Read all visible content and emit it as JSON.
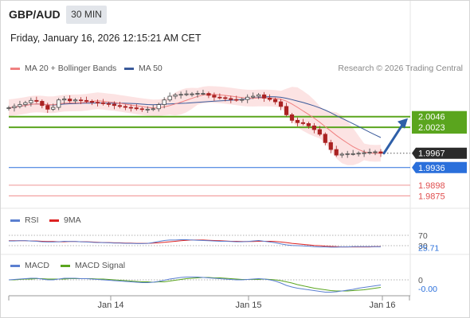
{
  "header": {
    "symbol": "GBP/AUD",
    "timeframe": "30 MIN",
    "datetime": "Friday, January 16, 2026 12:15:21 AM CET",
    "copyright": "Research © 2026 Trading Central"
  },
  "legend": {
    "ma20": "MA 20 + Bollinger Bands",
    "ma50": "MA 50",
    "rsi": "RSI",
    "rsi_ma": "9MA",
    "macd": "MACD",
    "macd_signal": "MACD Signal"
  },
  "colors": {
    "ma20": "#f08080",
    "ma50": "#3a5a9a",
    "band_fill": "#fbd9d9",
    "resistance": "#5aa51e",
    "support_pivot": "#2a6fdb",
    "support_red": "#e05050",
    "candle_up": "#444444",
    "candle_down": "#aa2222",
    "arrow": "#2e5fa8"
  },
  "chart_data": [
    {
      "type": "candlestick",
      "x_ticks": [
        "Jan 14",
        "Jan 15",
        "Jan 16"
      ],
      "ylim": [
        1.9855,
        2.0133
      ],
      "close_series": [
        2.0065,
        2.0068,
        2.0072,
        2.0076,
        2.0081,
        2.0079,
        2.007,
        2.0062,
        2.0066,
        2.0082,
        2.0084,
        2.008,
        2.0082,
        2.0081,
        2.0079,
        2.0077,
        2.0076,
        2.0074,
        2.0073,
        2.007,
        2.0068,
        2.0066,
        2.0065,
        2.0063,
        2.0062,
        2.0062,
        2.0063,
        2.0072,
        2.0082,
        2.009,
        2.0093,
        2.0094,
        2.0095,
        2.0095,
        2.0096,
        2.0096,
        2.0092,
        2.0088,
        2.0087,
        2.0085,
        2.0083,
        2.0082,
        2.0083,
        2.0088,
        2.009,
        2.0093,
        2.0086,
        2.0083,
        2.0078,
        2.0068,
        2.005,
        2.0038,
        2.0033,
        2.0031,
        2.0026,
        2.0018,
        2.0008,
        1.999,
        1.9975,
        1.9963,
        1.9965,
        1.9966,
        1.9966,
        1.9967,
        1.9968,
        1.9969,
        1.997,
        1.9967
      ],
      "price_labels": [
        {
          "value": "2.0046",
          "role": "resistance"
        },
        {
          "value": "2.0023",
          "role": "resistance"
        },
        {
          "value": "1.9967",
          "role": "last"
        },
        {
          "value": "1.9936",
          "role": "pivot"
        },
        {
          "value": "1.9898",
          "role": "support"
        },
        {
          "value": "1.9875",
          "role": "support"
        }
      ],
      "levels": [
        2.0046,
        2.0023,
        1.9967,
        1.9936,
        1.9898,
        1.9875
      ],
      "projection": {
        "from": 1.9967,
        "to": 2.0046
      }
    },
    {
      "type": "line",
      "name": "RSI",
      "ylim": [
        0,
        100
      ],
      "levels": [
        70,
        30
      ],
      "level_labels": [
        "70",
        "30"
      ],
      "last_value": "25.71",
      "values": [
        48,
        48,
        49,
        49,
        48,
        47,
        45,
        44,
        44,
        45,
        47,
        46,
        46,
        45,
        44,
        43,
        42,
        42,
        41,
        40,
        40,
        39,
        39,
        38,
        38,
        39,
        42,
        46,
        50,
        52,
        52,
        53,
        53,
        52,
        51,
        50,
        49,
        48,
        47,
        47,
        46,
        45,
        45,
        46,
        48,
        50,
        47,
        44,
        41,
        37,
        33,
        31,
        30,
        29,
        28,
        26,
        25,
        25,
        24,
        24,
        25,
        25,
        26,
        26,
        26,
        26,
        26,
        25.71
      ],
      "ma_values": [
        49,
        49,
        49,
        49,
        48,
        48,
        47,
        46,
        46,
        45,
        45,
        46,
        46,
        45,
        45,
        44,
        43,
        42,
        42,
        41,
        41,
        40,
        40,
        39,
        39,
        39,
        40,
        41,
        43,
        45,
        47,
        49,
        51,
        52,
        52,
        52,
        51,
        50,
        49,
        48,
        47,
        47,
        46,
        46,
        46,
        47,
        47,
        47,
        46,
        44,
        42,
        39,
        37,
        35,
        33,
        31,
        30,
        28,
        27,
        26,
        25,
        25,
        25,
        25,
        25,
        25,
        26,
        26
      ]
    },
    {
      "type": "line",
      "name": "MACD",
      "zero_label": "0",
      "last_value": "-0.00",
      "ylim": [
        -0.0035,
        0.0015
      ],
      "values": [
        0.0,
        0.0001,
        0.0002,
        0.0003,
        0.0004,
        0.0004,
        0.0002,
        0.0,
        0.0,
        0.0002,
        0.0004,
        0.0004,
        0.0004,
        0.0003,
        0.0003,
        0.0002,
        0.0001,
        0.0,
        -0.0001,
        -0.0002,
        -0.0003,
        -0.0004,
        -0.0005,
        -0.0006,
        -0.0007,
        -0.0007,
        -0.0006,
        -0.0004,
        -0.0001,
        0.0002,
        0.0004,
        0.0006,
        0.0007,
        0.0007,
        0.0007,
        0.0006,
        0.0005,
        0.0004,
        0.0003,
        0.0002,
        0.0001,
        0.0,
        0.0,
        0.0001,
        0.0002,
        0.0003,
        0.0002,
        0.0,
        -0.0003,
        -0.0008,
        -0.0014,
        -0.0018,
        -0.0021,
        -0.0023,
        -0.0025,
        -0.0027,
        -0.0029,
        -0.0031,
        -0.0031,
        -0.003,
        -0.0028,
        -0.0026,
        -0.0024,
        -0.0021,
        -0.0019,
        -0.0017,
        -0.0015,
        -0.0013
      ],
      "signal_values": [
        0.0,
        0.0,
        0.0001,
        0.0002,
        0.0002,
        0.0003,
        0.0003,
        0.0002,
        0.0002,
        0.0002,
        0.0002,
        0.0003,
        0.0003,
        0.0003,
        0.0003,
        0.0003,
        0.0002,
        0.0002,
        0.0001,
        0.0,
        -0.0001,
        -0.0002,
        -0.0003,
        -0.0004,
        -0.0005,
        -0.0005,
        -0.0006,
        -0.0005,
        -0.0005,
        -0.0003,
        -0.0001,
        0.0001,
        0.0003,
        0.0004,
        0.0005,
        0.0006,
        0.0006,
        0.0005,
        0.0005,
        0.0004,
        0.0003,
        0.0002,
        0.0001,
        0.0001,
        0.0001,
        0.0001,
        0.0002,
        0.0001,
        0.0,
        -0.0002,
        -0.0005,
        -0.0008,
        -0.0012,
        -0.0015,
        -0.0018,
        -0.0021,
        -0.0023,
        -0.0025,
        -0.0027,
        -0.0028,
        -0.0028,
        -0.0028,
        -0.0027,
        -0.0026,
        -0.0025,
        -0.0023,
        -0.0021,
        -0.0019
      ]
    }
  ]
}
